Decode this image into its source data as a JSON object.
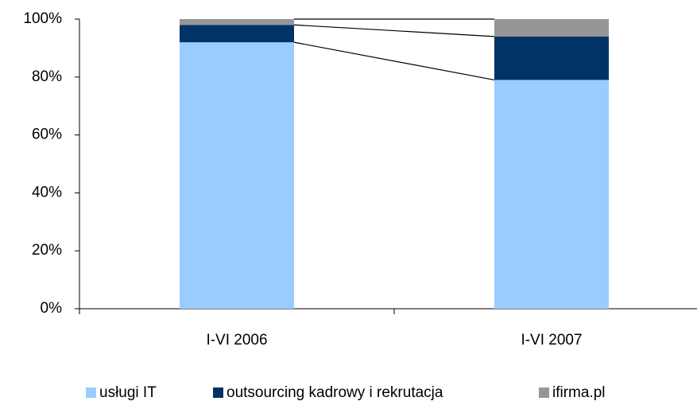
{
  "chart_data": {
    "type": "stacked_bar_100",
    "categories": [
      "I-VI 2006",
      "I-VI 2007"
    ],
    "series": [
      {
        "name": "usługi IT",
        "color": "#99ccff",
        "values": [
          92,
          79
        ]
      },
      {
        "name": "outsourcing kadrowy i rekrutacja",
        "color": "#003366",
        "values": [
          6,
          15
        ]
      },
      {
        "name": "ifirma.pl",
        "color": "#969696",
        "values": [
          2,
          6
        ]
      }
    ],
    "ylim": [
      0,
      100
    ],
    "yticks": [
      {
        "value": 0,
        "label": "0%"
      },
      {
        "value": 20,
        "label": "20%"
      },
      {
        "value": 40,
        "label": "40%"
      },
      {
        "value": 60,
        "label": "60%"
      },
      {
        "value": 80,
        "label": "80%"
      },
      {
        "value": 100,
        "label": "100%"
      }
    ],
    "series_lines": true,
    "legend": "bottom"
  }
}
